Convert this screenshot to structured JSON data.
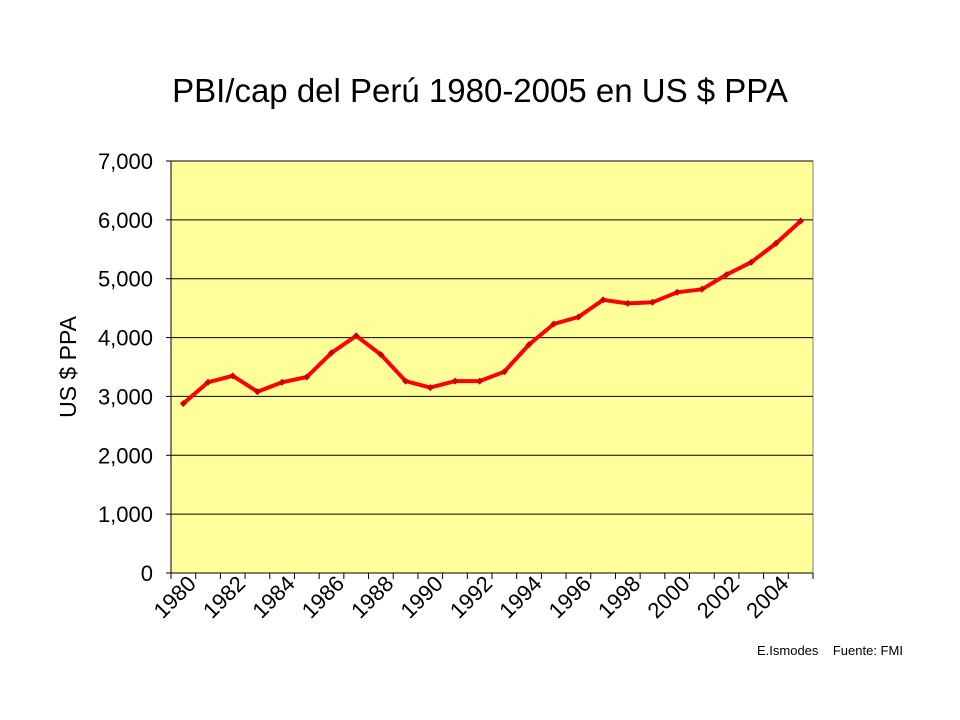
{
  "chart_data": {
    "type": "line",
    "title": "PBI/cap del  Perú 1980-2005 en US $ PPA",
    "xlabel": "",
    "ylabel": "US $ PPA",
    "ylim": [
      0,
      7000
    ],
    "yticks": [
      "0",
      "1,000",
      "2,000",
      "3,000",
      "4,000",
      "5,000",
      "6,000",
      "7,000"
    ],
    "ytick_values": [
      0,
      1000,
      2000,
      3000,
      4000,
      5000,
      6000,
      7000
    ],
    "x": [
      1980,
      1981,
      1982,
      1983,
      1984,
      1985,
      1986,
      1987,
      1988,
      1989,
      1990,
      1991,
      1992,
      1993,
      1994,
      1995,
      1996,
      1997,
      1998,
      1999,
      2000,
      2001,
      2002,
      2003,
      2004,
      2005
    ],
    "xticks": [
      "1980",
      "1982",
      "1984",
      "1986",
      "1988",
      "1990",
      "1992",
      "1994",
      "1996",
      "1998",
      "2000",
      "2002",
      "2004"
    ],
    "series": [
      {
        "values": [
          2880,
          3240,
          3350,
          3080,
          3240,
          3330,
          3740,
          4030,
          3710,
          3260,
          3150,
          3260,
          3260,
          3420,
          3880,
          4230,
          4350,
          4640,
          4580,
          4600,
          4770,
          4820,
          5070,
          5280,
          5600,
          5980
        ]
      }
    ],
    "grid": true,
    "legend": "none",
    "colors": {
      "plot_bg": "#ffff99",
      "line": "#ff0000",
      "marker": "#cc0000",
      "grid": "#000000"
    }
  },
  "credits": "E.Ismodes    Fuente: FMI"
}
